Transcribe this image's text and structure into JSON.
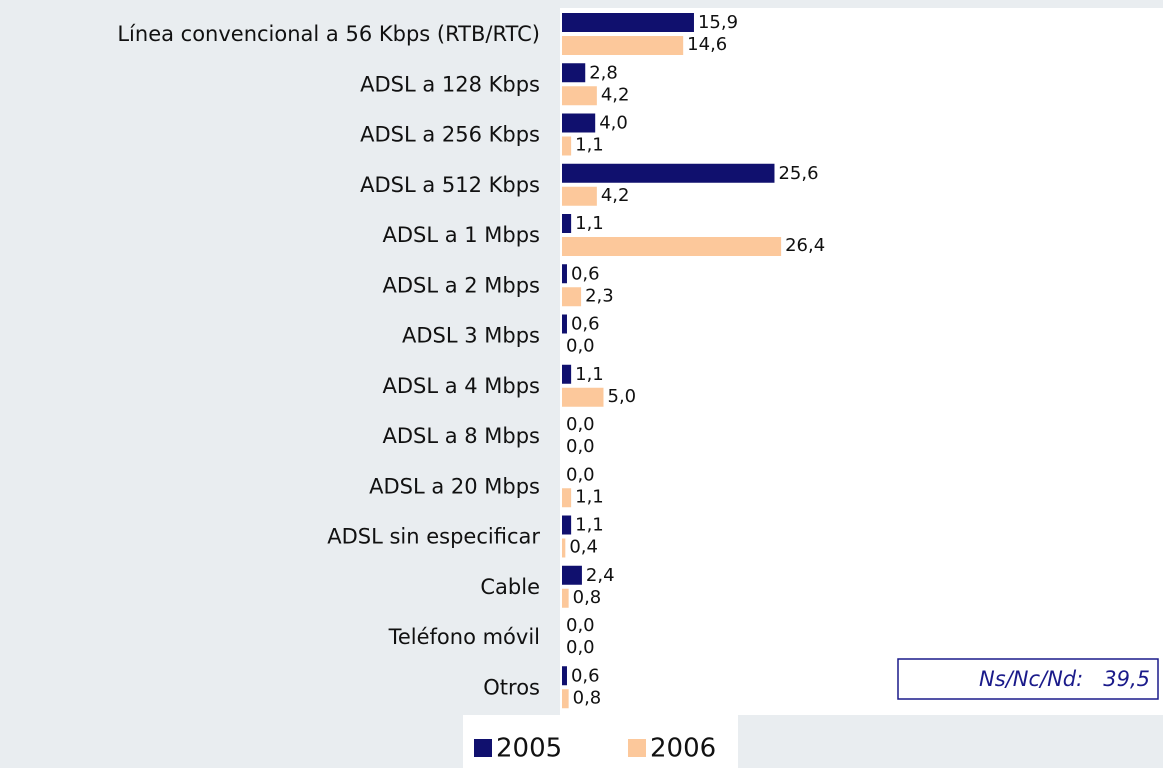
{
  "chart_data": {
    "type": "bar",
    "orientation": "horizontal",
    "categories": [
      "Línea convencional  a 56 Kbps (RTB/RTC)",
      "ADSL a 128 Kbps",
      "ADSL a 256 Kbps",
      "ADSL a 512 Kbps",
      "ADSL a 1 Mbps",
      "ADSL a 2 Mbps",
      "ADSL 3 Mbps",
      "ADSL a 4 Mbps",
      "ADSL a 8 Mbps",
      "ADSL a 20 Mbps",
      "ADSL sin especificar",
      "Cable",
      "Teléfono móvil",
      "Otros"
    ],
    "series": [
      {
        "name": "2005",
        "color": "#10106e",
        "values": [
          15.9,
          2.8,
          4.0,
          25.6,
          1.1,
          0.6,
          0.6,
          1.1,
          0.0,
          0.0,
          1.1,
          2.4,
          0.0,
          0.6
        ],
        "value_labels": [
          "15,9",
          "2,8",
          "4,0",
          "25,6",
          "1,1",
          "0,6",
          "0,6",
          "1,1",
          "0,0",
          "0,0",
          "1,1",
          "2,4",
          "0,0",
          "0,6"
        ]
      },
      {
        "name": "2006",
        "color": "#fcc89b",
        "values": [
          14.6,
          4.2,
          1.1,
          4.2,
          26.4,
          2.3,
          0.0,
          5.0,
          0.0,
          1.1,
          0.4,
          0.8,
          0.0,
          0.8
        ],
        "value_labels": [
          "14,6",
          "4,2",
          "1,1",
          "4,2",
          "26,4",
          "2,3",
          "0,0",
          "5,0",
          "0,0",
          "1,1",
          "0,4",
          "0,8",
          "0,0",
          "0,8"
        ]
      }
    ],
    "annotation": "Ns/Nc/Nd:   39,5",
    "legend": "bottom"
  }
}
